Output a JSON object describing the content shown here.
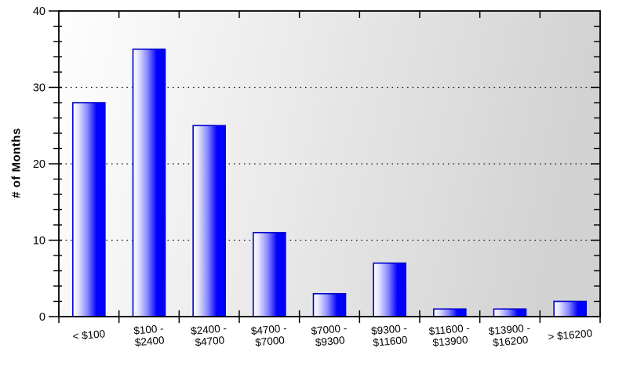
{
  "chart_data": {
    "type": "bar",
    "title": "",
    "xlabel": "",
    "ylabel": "# of Months",
    "categories": [
      "< $100",
      "$100 - $2400",
      "$2400 - $4700",
      "$4700 - $7000",
      "$7000 - $9300",
      "$9300 - $11600",
      "$11600 - $13900",
      "$13900 - $16200",
      "> $16200"
    ],
    "categories_display": [
      [
        "< $100"
      ],
      [
        "$100 -",
        "$2400"
      ],
      [
        "$2400 -",
        "$4700"
      ],
      [
        "$4700 -",
        "$7000"
      ],
      [
        "$7000 -",
        "$9300"
      ],
      [
        "$9300 -",
        "$11600"
      ],
      [
        "$11600 -",
        "$13900"
      ],
      [
        "$13900 -",
        "$16200"
      ],
      [
        "> $16200"
      ]
    ],
    "values": [
      28,
      35,
      25,
      11,
      3,
      7,
      1,
      1,
      2
    ],
    "ylim": [
      0,
      40
    ],
    "y_major_ticks": [
      0,
      10,
      20,
      30,
      40
    ],
    "y_minor_step": 2,
    "grid_values": [
      10,
      20,
      30
    ],
    "grid_style": "dotted",
    "legend_position": "none",
    "colors": {
      "bar_fill_light": "#ffffff",
      "bar_fill_mid": "#8a8aff",
      "bar_fill_dark": "#0000ff",
      "bar_border": "#0000cc",
      "plot_bg_left": "#fefefe",
      "plot_bg_right": "#d2d2d2",
      "axis": "#000000",
      "grid": "#1a1a1a",
      "text": "#000000"
    }
  }
}
